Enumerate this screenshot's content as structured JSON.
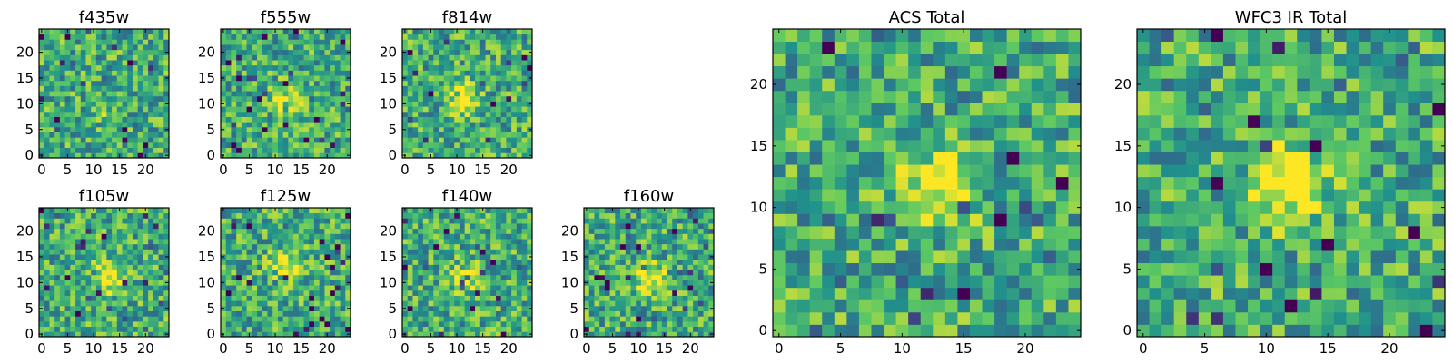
{
  "chart_data": {
    "type": "heatmap",
    "colormap": [
      "#440154",
      "#3b528b",
      "#21918c",
      "#5ec962",
      "#fde725"
    ],
    "grid_size": 25,
    "panels": [
      {
        "name": "f435w",
        "title": "f435w",
        "xticks": [
          "0",
          "5",
          "10",
          "15",
          "20"
        ],
        "yticks": [
          "0",
          "5",
          "10",
          "15",
          "20"
        ],
        "xlim": [
          -0.5,
          24.5
        ],
        "ylim": [
          -0.5,
          24.5
        ],
        "peak": [
          12,
          10
        ],
        "peak_strength": 0.15,
        "seed": 3
      },
      {
        "name": "f555w",
        "title": "f555w",
        "xticks": [
          "0",
          "5",
          "10",
          "15",
          "20"
        ],
        "yticks": [
          "0",
          "5",
          "10",
          "15",
          "20"
        ],
        "xlim": [
          -0.5,
          24.5
        ],
        "ylim": [
          -0.5,
          24.5
        ],
        "peak": [
          12,
          11
        ],
        "peak_strength": 0.25,
        "seed": 7
      },
      {
        "name": "f814w",
        "title": "f814w",
        "xticks": [
          "0",
          "5",
          "10",
          "15",
          "20"
        ],
        "yticks": [
          "0",
          "5",
          "10",
          "15",
          "20"
        ],
        "xlim": [
          -0.5,
          24.5
        ],
        "ylim": [
          -0.5,
          24.5
        ],
        "peak": [
          11,
          11
        ],
        "peak_strength": 0.55,
        "seed": 11
      },
      {
        "name": "f105w",
        "title": "f105w",
        "xticks": [
          "0",
          "5",
          "10",
          "15",
          "20"
        ],
        "yticks": [
          "0",
          "5",
          "10",
          "15",
          "20"
        ],
        "xlim": [
          -0.5,
          24.5
        ],
        "ylim": [
          -0.5,
          24.5
        ],
        "peak": [
          13,
          11
        ],
        "peak_strength": 0.45,
        "seed": 19
      },
      {
        "name": "f125w",
        "title": "f125w",
        "xticks": [
          "0",
          "5",
          "10",
          "15",
          "20"
        ],
        "yticks": [
          "0",
          "5",
          "10",
          "15",
          "20"
        ],
        "xlim": [
          -0.5,
          24.5
        ],
        "ylim": [
          -0.5,
          24.5
        ],
        "peak": [
          12,
          13
        ],
        "peak_strength": 0.4,
        "seed": 23
      },
      {
        "name": "f140w",
        "title": "f140w",
        "xticks": [
          "0",
          "5",
          "10",
          "15",
          "20"
        ],
        "yticks": [
          "0",
          "5",
          "10",
          "15",
          "20"
        ],
        "xlim": [
          -0.5,
          24.5
        ],
        "ylim": [
          -0.5,
          24.5
        ],
        "peak": [
          12,
          11
        ],
        "peak_strength": 0.35,
        "seed": 29
      },
      {
        "name": "f160w",
        "title": "f160w",
        "xticks": [
          "0",
          "5",
          "10",
          "15",
          "20"
        ],
        "yticks": [
          "0",
          "5",
          "10",
          "15",
          "20"
        ],
        "xlim": [
          -0.5,
          24.5
        ],
        "ylim": [
          -0.5,
          24.5
        ],
        "peak": [
          12,
          11
        ],
        "peak_strength": 0.45,
        "seed": 31
      },
      {
        "name": "acs-total",
        "title": "ACS Total",
        "xticks": [
          "0",
          "5",
          "10",
          "15",
          "20"
        ],
        "yticks": [
          "0",
          "5",
          "10",
          "15",
          "20"
        ],
        "xlim": [
          -0.5,
          24.5
        ],
        "ylim": [
          -0.5,
          24.5
        ],
        "peak": [
          13,
          12
        ],
        "peak_strength": 0.5,
        "seed": 41
      },
      {
        "name": "wfc3-ir-total",
        "title": "WFC3 IR Total",
        "xticks": [
          "0",
          "5",
          "10",
          "15",
          "20"
        ],
        "yticks": [
          "0",
          "5",
          "10",
          "15",
          "20"
        ],
        "xlim": [
          -0.5,
          24.5
        ],
        "ylim": [
          -0.5,
          24.5
        ],
        "peak": [
          12,
          12
        ],
        "peak_strength": 0.55,
        "seed": 53
      }
    ]
  }
}
